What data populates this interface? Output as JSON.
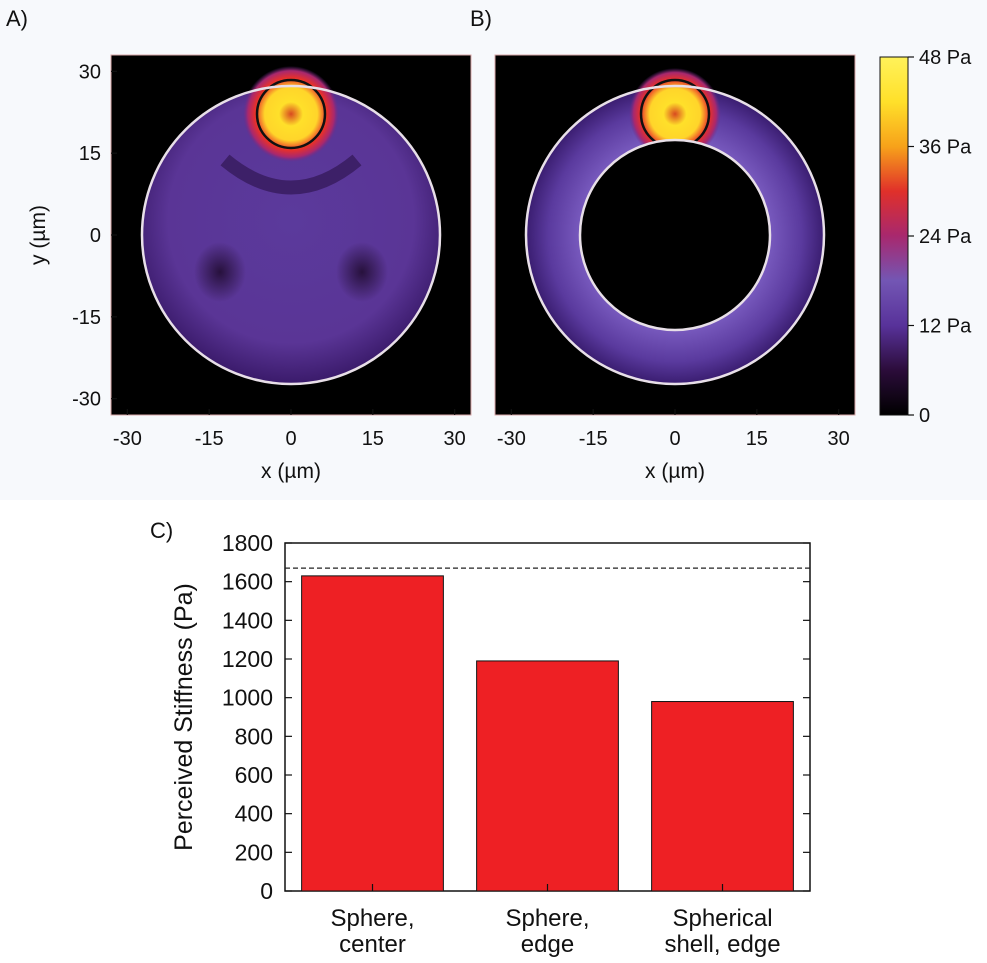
{
  "panels": {
    "a": {
      "label": "A)"
    },
    "b": {
      "label": "B)"
    },
    "c": {
      "label": "C)"
    }
  },
  "heatmap_axes": {
    "xlabel": "x (µm)",
    "ylabel": "y (µm)",
    "ticks": [
      -30,
      -15,
      0,
      15,
      30
    ],
    "tick_labels": [
      "-30",
      "-15",
      "0",
      "15",
      "30"
    ],
    "range": [
      -33,
      33
    ]
  },
  "colorbar": {
    "ticks": [
      0,
      12,
      24,
      36,
      48
    ],
    "tick_labels": [
      "0",
      "12 Pa",
      "24 Pa",
      "36 Pa",
      "48 Pa"
    ],
    "colors": [
      "#000000",
      "#2b0c3a",
      "#58329a",
      "#7356b4",
      "#a8286e",
      "#e0302a",
      "#f7a21a",
      "#ffe02a",
      "#fff25a"
    ]
  },
  "chart_data": [
    {
      "type": "heatmap",
      "panel": "A",
      "description_shape": "sphere",
      "outer_radius_um": 27,
      "probe_center_um": [
        0,
        22
      ],
      "probe_radius_um": 5,
      "xlim": [
        -33,
        33
      ],
      "ylim": [
        -33,
        33
      ],
      "colorbar_range_pa": [
        0,
        48
      ]
    },
    {
      "type": "heatmap",
      "panel": "B",
      "description_shape": "spherical shell",
      "outer_radius_um": 27,
      "inner_radius_um": 17.5,
      "probe_center_um": [
        0,
        22
      ],
      "probe_radius_um": 5,
      "xlim": [
        -33,
        33
      ],
      "ylim": [
        -33,
        33
      ],
      "colorbar_range_pa": [
        0,
        48
      ]
    },
    {
      "type": "bar",
      "panel": "C",
      "categories": [
        [
          "Sphere,",
          "center"
        ],
        [
          "Sphere,",
          "edge"
        ],
        [
          "Spherical",
          "shell, edge"
        ]
      ],
      "values": [
        1630,
        1190,
        980
      ],
      "reference_line": 1670,
      "ylabel": "Perceived Stiffness (Pa)",
      "ylim": [
        0,
        1800
      ],
      "yticks": [
        0,
        200,
        400,
        600,
        800,
        1000,
        1200,
        1400,
        1600,
        1800
      ],
      "bar_color": "#ee2024"
    }
  ]
}
